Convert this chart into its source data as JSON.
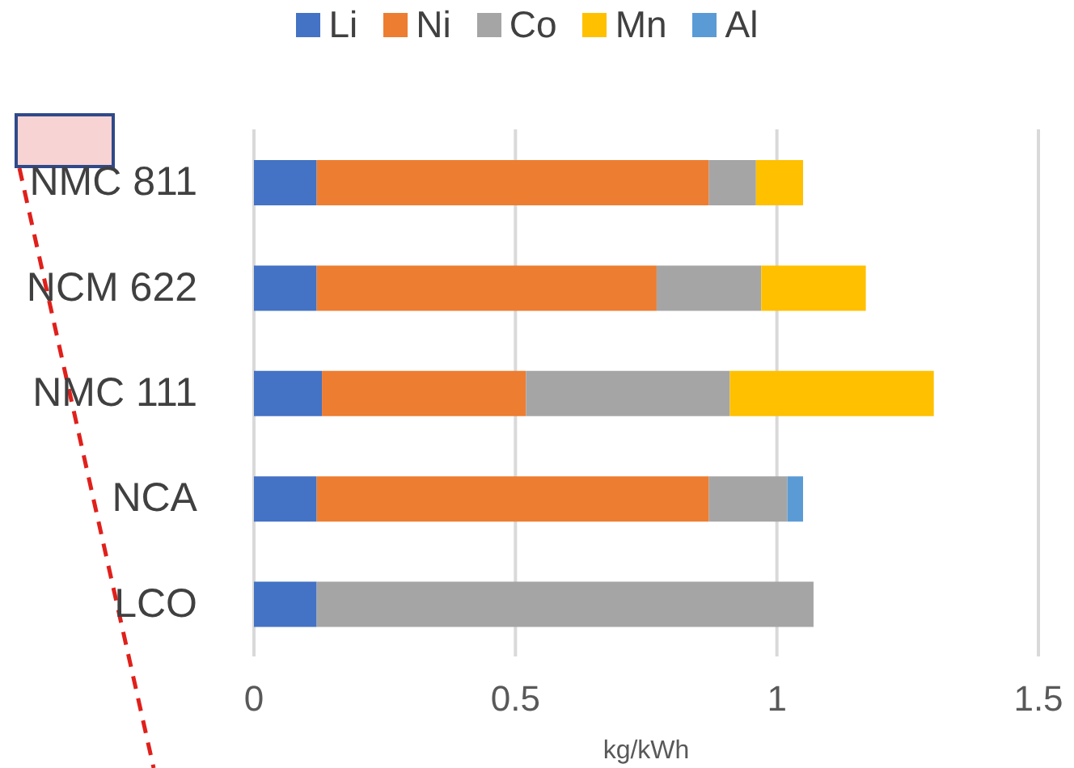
{
  "chart_data": {
    "type": "bar",
    "orientation": "horizontal",
    "stacked": true,
    "xlabel": "kg/kWh",
    "categories": [
      "NMC 811",
      "NCM 622",
      "NMC 111",
      "NCA",
      "LCO"
    ],
    "series": [
      {
        "name": "Li",
        "color": "#4472c4",
        "values": [
          0.12,
          0.12,
          0.13,
          0.12,
          0.12
        ]
      },
      {
        "name": "Ni",
        "color": "#ed7d31",
        "values": [
          0.75,
          0.65,
          0.39,
          0.75,
          null
        ]
      },
      {
        "name": "Co",
        "color": "#a5a5a5",
        "values": [
          0.09,
          0.2,
          0.39,
          0.15,
          0.95
        ]
      },
      {
        "name": "Mn",
        "color": "#ffc000",
        "values": [
          0.09,
          0.2,
          0.39,
          null,
          null
        ]
      },
      {
        "name": "Al",
        "color": "#5b9bd5",
        "values": [
          null,
          null,
          null,
          0.03,
          null
        ]
      }
    ],
    "xlim": [
      0,
      1.5
    ],
    "xticks": [
      0,
      0.5,
      1,
      1.5
    ],
    "grid": "x",
    "legend": "top"
  }
}
